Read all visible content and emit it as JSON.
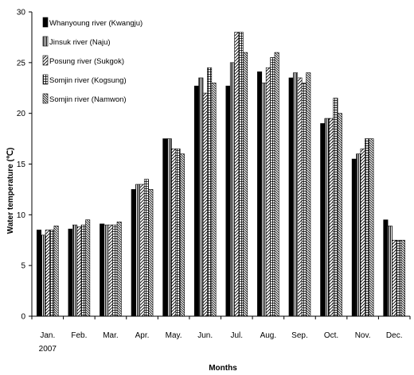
{
  "chart_data": {
    "type": "bar",
    "ylabel": "Water temperature (℃)",
    "xlabel": "Months",
    "ylim": [
      0,
      30
    ],
    "y_ticks": [
      0,
      5,
      10,
      15,
      20,
      25,
      30
    ],
    "categories": [
      "Jan.",
      "Feb.",
      "Mar.",
      "Apr.",
      "May.",
      "Jun.",
      "Jul.",
      "Aug.",
      "Sep.",
      "Oct.",
      "Nov.",
      "Dec."
    ],
    "category_sublabel": "2007",
    "grid": false,
    "legend_position": "top-left",
    "series": [
      {
        "name": "Whanyoung river (Kwangju)",
        "pattern": "solid",
        "values": [
          8.5,
          8.6,
          9.1,
          12.5,
          17.5,
          22.7,
          22.7,
          24.1,
          23.5,
          19.0,
          15.5,
          9.5
        ]
      },
      {
        "name": "Jinsuk river (Naju)",
        "pattern": "vertical",
        "values": [
          8.0,
          9.0,
          9.0,
          13.0,
          17.5,
          23.5,
          25.0,
          23.0,
          24.0,
          19.5,
          16.0,
          8.9
        ]
      },
      {
        "name": "Posung river (Sukgok)",
        "pattern": "diagonal",
        "values": [
          8.5,
          8.8,
          9.0,
          13.0,
          16.5,
          22.0,
          28.0,
          24.5,
          23.5,
          19.5,
          16.5,
          7.5
        ]
      },
      {
        "name": "Somjin river (Kogsung)",
        "pattern": "grid",
        "values": [
          8.5,
          9.0,
          9.0,
          13.5,
          16.5,
          24.5,
          28.0,
          25.5,
          23.0,
          21.5,
          17.5,
          7.5
        ]
      },
      {
        "name": "Somjin river (Namwon)",
        "pattern": "diagonal-dense",
        "values": [
          8.9,
          9.5,
          9.3,
          12.5,
          16.0,
          23.0,
          26.0,
          26.0,
          24.0,
          20.0,
          17.5,
          7.5
        ]
      }
    ]
  }
}
